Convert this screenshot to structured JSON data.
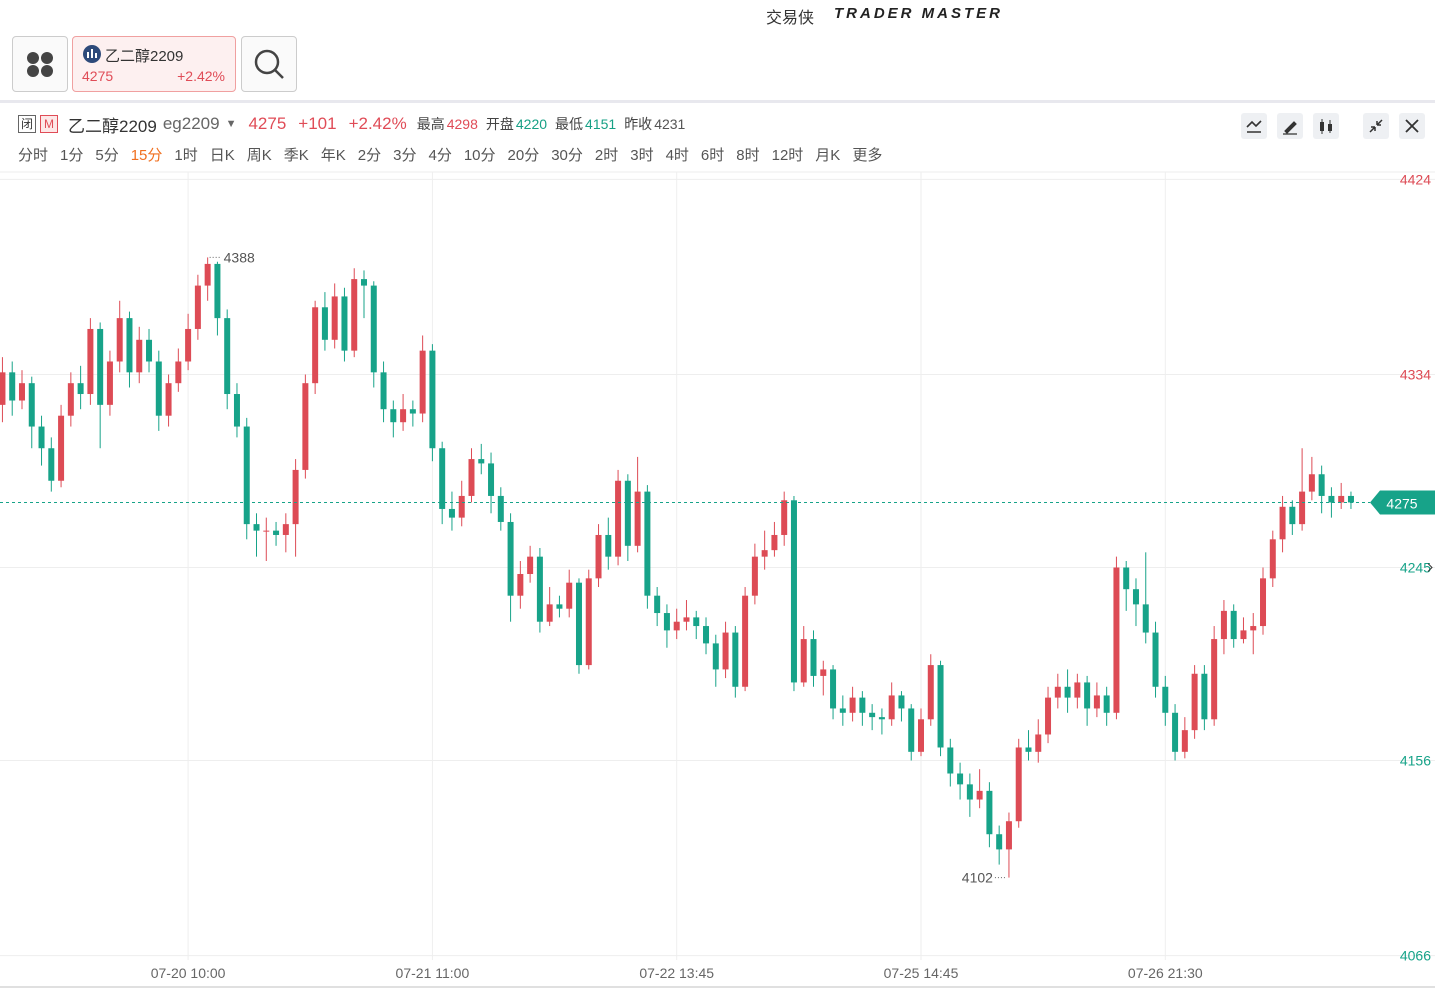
{
  "header": {
    "brand": "交易侠",
    "brand_en": "TRADER MASTER"
  },
  "tab": {
    "name": "乙二醇2209",
    "price": "4275",
    "change_pct": "+2.42%"
  },
  "quote": {
    "badge_closed": "闭",
    "badge_m": "M",
    "name": "乙二醇2209",
    "code": "eg2209",
    "price": "4275",
    "change": "+101",
    "change_pct": "+2.42%",
    "stats": [
      {
        "label": "最高",
        "value": "4298",
        "color": "#e04c57"
      },
      {
        "label": "开盘",
        "value": "4220",
        "color": "#16a085"
      },
      {
        "label": "最低",
        "value": "4151",
        "color": "#16a085"
      },
      {
        "label": "昨收",
        "value": "4231",
        "color": "#555555"
      }
    ]
  },
  "periods": [
    {
      "label": "分时"
    },
    {
      "label": "1分"
    },
    {
      "label": "5分"
    },
    {
      "label": "15分",
      "active": true
    },
    {
      "label": "1时"
    },
    {
      "label": "日K"
    },
    {
      "label": "周K"
    },
    {
      "label": "季K"
    },
    {
      "label": "年K"
    },
    {
      "label": "2分"
    },
    {
      "label": "3分"
    },
    {
      "label": "4分"
    },
    {
      "label": "10分"
    },
    {
      "label": "20分"
    },
    {
      "label": "30分"
    },
    {
      "label": "2时"
    },
    {
      "label": "3时"
    },
    {
      "label": "4时"
    },
    {
      "label": "6时"
    },
    {
      "label": "8时"
    },
    {
      "label": "12时"
    },
    {
      "label": "月K"
    },
    {
      "label": "更多"
    }
  ],
  "chart_data": {
    "type": "candlestick",
    "up_color": "#dd4b55",
    "down_color": "#17a389",
    "grid": true,
    "xlim": [
      -0.25,
      146.6
    ],
    "xticks": [
      {
        "value": 19,
        "label": "07-20 10:00"
      },
      {
        "value": 44,
        "label": "07-21 11:00"
      },
      {
        "value": 69,
        "label": "07-22 13:45"
      },
      {
        "value": 94,
        "label": "07-25 14:45"
      },
      {
        "value": 119,
        "label": "07-26 21:30"
      }
    ],
    "ylim": [
      4064,
      4426
    ],
    "yticks": [
      4424,
      4334,
      4245,
      4156,
      4066
    ],
    "last_price": 4275,
    "extremes": [
      4388,
      4102
    ],
    "open": [
      4320,
      4335,
      4322,
      4330,
      4310,
      4300,
      4285,
      4315,
      4330,
      4325,
      4355,
      4320,
      4340,
      4360,
      4335,
      4350,
      4340,
      4315,
      4330,
      4340,
      4355,
      4375,
      4385,
      4360,
      4325,
      4310,
      4265,
      4262,
      4262,
      4260,
      4265,
      4290,
      4330,
      4365,
      4350,
      4370,
      4345,
      4378,
      4375,
      4335,
      4318,
      4312,
      4318,
      4316,
      4345,
      4300,
      4272,
      4268,
      4278,
      4295,
      4293,
      4278,
      4266,
      4232,
      4242,
      4250,
      4220,
      4228,
      4226,
      4238,
      4200,
      4240,
      4260,
      4250,
      4285,
      4255,
      4280,
      4232,
      4224,
      4216,
      4220,
      4222,
      4218,
      4210,
      4198,
      4215,
      4190,
      4232,
      4250,
      4253,
      4260,
      4276,
      4192,
      4212,
      4195,
      4198,
      4180,
      4178,
      4185,
      4178,
      4176,
      4175,
      4186,
      4180,
      4160,
      4175,
      4200,
      4162,
      4150,
      4145,
      4138,
      4142,
      4122,
      4115,
      4128,
      4162,
      4160,
      4168,
      4185,
      4190,
      4185,
      4192,
      4180,
      4186,
      4178,
      4245,
      4235,
      4228,
      4215,
      4190,
      4178,
      4160,
      4170,
      4196,
      4175,
      4212,
      4225,
      4212,
      4216,
      4218,
      4240,
      4258,
      4273,
      4265,
      4280,
      4288,
      4278,
      4275,
      4278
    ],
    "high": [
      4342,
      4340,
      4336,
      4333,
      4315,
      4305,
      4320,
      4335,
      4338,
      4360,
      4358,
      4345,
      4368,
      4363,
      4356,
      4355,
      4345,
      4334,
      4346,
      4362,
      4380,
      4388,
      4386,
      4364,
      4330,
      4314,
      4270,
      4268,
      4266,
      4270,
      4295,
      4334,
      4368,
      4372,
      4376,
      4374,
      4383,
      4382,
      4377,
      4340,
      4322,
      4325,
      4322,
      4352,
      4348,
      4303,
      4280,
      4285,
      4300,
      4302,
      4298,
      4282,
      4270,
      4248,
      4255,
      4254,
      4236,
      4232,
      4244,
      4240,
      4244,
      4265,
      4268,
      4290,
      4288,
      4296,
      4283,
      4236,
      4228,
      4226,
      4230,
      4225,
      4222,
      4214,
      4220,
      4218,
      4236,
      4256,
      4262,
      4266,
      4280,
      4278,
      4218,
      4216,
      4202,
      4200,
      4186,
      4190,
      4188,
      4182,
      4180,
      4192,
      4188,
      4182,
      4180,
      4205,
      4202,
      4166,
      4155,
      4150,
      4152,
      4146,
      4126,
      4132,
      4166,
      4170,
      4175,
      4190,
      4196,
      4198,
      4196,
      4195,
      4192,
      4190,
      4250,
      4248,
      4240,
      4252,
      4220,
      4195,
      4182,
      4176,
      4200,
      4200,
      4218,
      4230,
      4228,
      4222,
      4224,
      4245,
      4262,
      4278,
      4276,
      4300,
      4296,
      4292,
      4282,
      4284,
      4280
    ],
    "low": [
      4312,
      4315,
      4318,
      4300,
      4292,
      4280,
      4282,
      4310,
      4318,
      4320,
      4300,
      4315,
      4335,
      4328,
      4330,
      4335,
      4308,
      4310,
      4326,
      4336,
      4350,
      4368,
      4352,
      4318,
      4305,
      4258,
      4250,
      4248,
      4255,
      4252,
      4250,
      4286,
      4325,
      4345,
      4346,
      4340,
      4342,
      4360,
      4328,
      4312,
      4305,
      4308,
      4310,
      4312,
      4294,
      4265,
      4262,
      4264,
      4275,
      4288,
      4270,
      4262,
      4220,
      4226,
      4238,
      4215,
      4218,
      4222,
      4222,
      4196,
      4198,
      4236,
      4244,
      4246,
      4248,
      4252,
      4226,
      4218,
      4208,
      4212,
      4216,
      4212,
      4205,
      4190,
      4194,
      4185,
      4188,
      4228,
      4244,
      4250,
      4255,
      4188,
      4190,
      4190,
      4186,
      4175,
      4172,
      4174,
      4172,
      4170,
      4168,
      4172,
      4174,
      4156,
      4158,
      4172,
      4158,
      4144,
      4138,
      4130,
      4134,
      4116,
      4108,
      4102,
      4125,
      4156,
      4155,
      4164,
      4180,
      4178,
      4180,
      4172,
      4176,
      4172,
      4175,
      4225,
      4218,
      4210,
      4185,
      4172,
      4156,
      4157,
      4166,
      4170,
      4172,
      4205,
      4208,
      4210,
      4205,
      4214,
      4236,
      4252,
      4260,
      4262,
      4276,
      4270,
      4268,
      4272,
      4272
    ],
    "close": [
      4335,
      4322,
      4330,
      4310,
      4300,
      4285,
      4315,
      4330,
      4325,
      4355,
      4320,
      4340,
      4360,
      4335,
      4350,
      4340,
      4315,
      4330,
      4340,
      4355,
      4375,
      4385,
      4360,
      4325,
      4310,
      4265,
      4262,
      4262,
      4260,
      4265,
      4290,
      4330,
      4365,
      4350,
      4370,
      4345,
      4378,
      4375,
      4335,
      4318,
      4312,
      4318,
      4316,
      4345,
      4300,
      4272,
      4268,
      4278,
      4295,
      4293,
      4278,
      4266,
      4232,
      4242,
      4250,
      4220,
      4228,
      4226,
      4238,
      4200,
      4240,
      4260,
      4250,
      4285,
      4255,
      4280,
      4232,
      4224,
      4216,
      4220,
      4222,
      4218,
      4210,
      4198,
      4215,
      4190,
      4232,
      4250,
      4253,
      4260,
      4276,
      4192,
      4212,
      4195,
      4198,
      4180,
      4178,
      4185,
      4178,
      4176,
      4175,
      4186,
      4180,
      4160,
      4175,
      4200,
      4162,
      4150,
      4145,
      4138,
      4142,
      4122,
      4115,
      4128,
      4162,
      4160,
      4168,
      4185,
      4190,
      4185,
      4192,
      4180,
      4186,
      4178,
      4245,
      4235,
      4228,
      4215,
      4190,
      4178,
      4160,
      4170,
      4196,
      4175,
      4212,
      4225,
      4212,
      4216,
      4218,
      4240,
      4258,
      4273,
      4265,
      4280,
      4288,
      4278,
      4275,
      4278,
      4275
    ]
  }
}
